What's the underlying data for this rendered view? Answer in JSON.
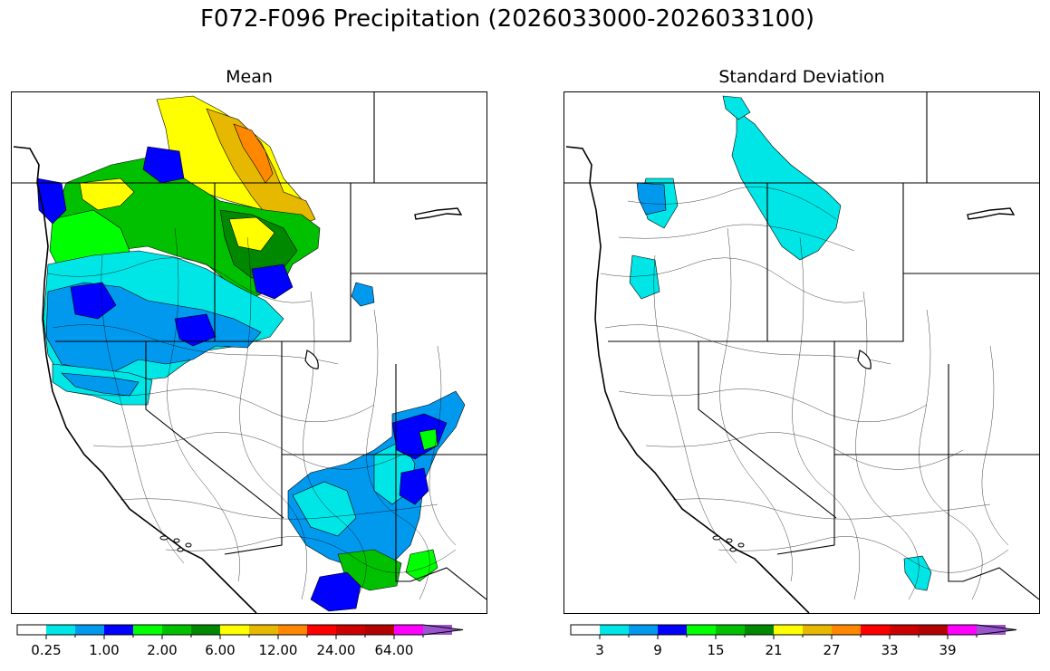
{
  "title": "F072-F096 Precipitation (2026033000-2026033100)",
  "panels": [
    {
      "id": "mean",
      "title": "Mean",
      "colorbar": {
        "colors": [
          "#ffffff",
          "#00e5e5",
          "#0099ee",
          "#0000ff",
          "#00ff00",
          "#00c000",
          "#008800",
          "#ffff00",
          "#e6b800",
          "#ff8800",
          "#ff0000",
          "#cc0000",
          "#b30000",
          "#ff00ff",
          "#9955cc"
        ],
        "tick_labels": [
          "0.25",
          "1.00",
          "2.00",
          "6.00",
          "12.00",
          "24.00",
          "64.00"
        ],
        "extend": "max"
      }
    },
    {
      "id": "std",
      "title": "Standard Deviation",
      "colorbar": {
        "colors": [
          "#ffffff",
          "#00e5e5",
          "#0099ee",
          "#0000ff",
          "#00ff00",
          "#00c000",
          "#008800",
          "#ffff00",
          "#e6b800",
          "#ff8800",
          "#ff0000",
          "#cc0000",
          "#b30000",
          "#ff00ff",
          "#9955cc"
        ],
        "tick_labels": [
          "3",
          "9",
          "15",
          "21",
          "27",
          "33",
          "39"
        ],
        "extend": "max"
      }
    }
  ]
}
